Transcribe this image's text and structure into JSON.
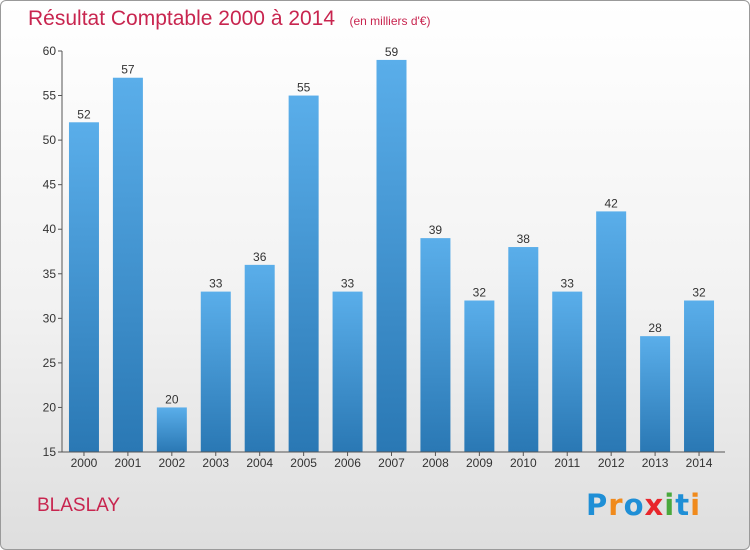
{
  "header": {
    "title": "Résultat Comptable 2000 à 2014",
    "subtitle": "(en milliers d'€)"
  },
  "commune": "BLASLAY",
  "logo": {
    "text": "Proxiti",
    "letters": [
      "P",
      "r",
      "o",
      "x",
      "i",
      "t",
      "i"
    ],
    "colors": [
      "#1f8fd6",
      "#f08a1c",
      "#1f8fd6",
      "#e8262c",
      "#4aa83c",
      "#1f8fd6",
      "#f08a1c"
    ]
  },
  "colors": {
    "bar_light": "#5aaeea",
    "bar_dark": "#2a78b4",
    "axis": "#555555",
    "grid_tick": "#555555"
  },
  "chart_data": {
    "type": "bar",
    "title": "Résultat Comptable 2000 à 2014",
    "subtitle": "(en milliers d'€)",
    "xlabel": "",
    "ylabel": "",
    "categories": [
      "2000",
      "2001",
      "2002",
      "2003",
      "2004",
      "2005",
      "2006",
      "2007",
      "2008",
      "2009",
      "2010",
      "2011",
      "2012",
      "2013",
      "2014"
    ],
    "values": [
      52,
      57,
      20,
      33,
      36,
      55,
      33,
      59,
      39,
      32,
      38,
      33,
      42,
      28,
      32
    ],
    "ylim": [
      15,
      60
    ],
    "yticks": [
      15,
      20,
      25,
      30,
      35,
      40,
      45,
      50,
      55,
      60
    ],
    "grid": false,
    "legend": "none"
  }
}
